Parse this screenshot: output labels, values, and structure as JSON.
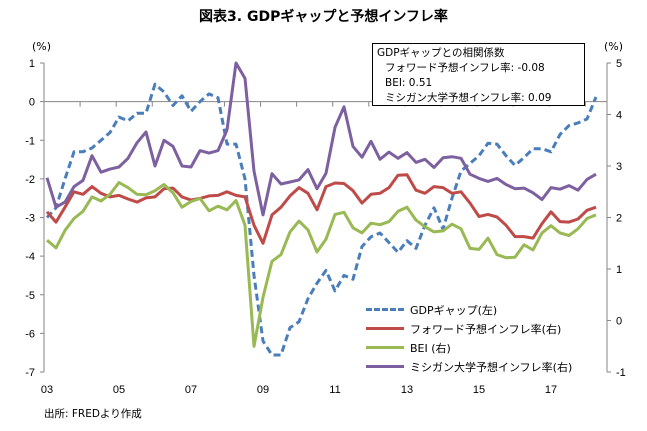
{
  "title": "図表3.  GDPギャップと予想インフレ率",
  "unit_left": "(%)",
  "unit_right": "(%)",
  "correlation": {
    "heading": "GDPギャップとの相関係数",
    "rows": [
      "フォワード予想インフレ率: -0.08",
      "BEI: 0.51",
      "ミシガン大学予想インフレ率: 0.09"
    ]
  },
  "source": "出所:  FREDより作成",
  "chart_data": {
    "type": "line",
    "title": "図表3.  GDPギャップと予想インフレ率",
    "x_start": "2003Q1",
    "frequency": "quarterly",
    "x_tick_labels": [
      "03",
      "05",
      "07",
      "09",
      "11",
      "13",
      "15",
      "17"
    ],
    "y_left": {
      "label": "(%)",
      "range": [
        -7,
        1
      ],
      "ticks": [
        "1",
        "0",
        "-1",
        "-2",
        "-3",
        "-4",
        "-5",
        "-6",
        "-7"
      ]
    },
    "y_right": {
      "label": "(%)",
      "range": [
        -1,
        5
      ],
      "ticks": [
        "5",
        "4",
        "3",
        "2",
        "1",
        "0",
        "-1"
      ]
    },
    "legend_position": "bottom-right",
    "series": [
      {
        "name": "GDPギャップ(左)",
        "axis": "left",
        "color": "#4a7ebb",
        "dash": true,
        "values": [
          -3.0,
          -2.75,
          -2.0,
          -1.3,
          -1.3,
          -1.2,
          -1.0,
          -0.8,
          -0.4,
          -0.5,
          -0.3,
          -0.3,
          0.45,
          0.25,
          -0.1,
          0.15,
          -0.25,
          0.0,
          0.2,
          0.1,
          -1.1,
          -1.1,
          -2.0,
          -4.5,
          -6.2,
          -6.56,
          -6.56,
          -5.85,
          -5.7,
          -5.1,
          -4.7,
          -4.37,
          -4.9,
          -4.5,
          -4.6,
          -3.75,
          -3.5,
          -3.4,
          -3.65,
          -3.9,
          -3.6,
          -3.8,
          -3.2,
          -2.75,
          -3.3,
          -2.5,
          -1.8,
          -1.6,
          -1.4,
          -1.08,
          -1.1,
          -1.4,
          -1.65,
          -1.45,
          -1.22,
          -1.22,
          -1.3,
          -0.85,
          -0.62,
          -0.55,
          -0.45,
          0.12
        ]
      },
      {
        "name": "フォワード予想インフレ率(右)",
        "axis": "right",
        "color": "#be4b48",
        "dash": false,
        "values": [
          2.11,
          1.91,
          2.2,
          2.5,
          2.45,
          2.6,
          2.47,
          2.4,
          2.43,
          2.36,
          2.3,
          2.38,
          2.4,
          2.56,
          2.57,
          2.4,
          2.34,
          2.37,
          2.42,
          2.43,
          2.5,
          2.43,
          2.4,
          1.85,
          1.5,
          2.05,
          2.2,
          2.42,
          2.58,
          2.47,
          2.15,
          2.6,
          2.67,
          2.66,
          2.52,
          2.28,
          2.45,
          2.47,
          2.58,
          2.82,
          2.83,
          2.53,
          2.47,
          2.6,
          2.58,
          2.47,
          2.5,
          2.28,
          2.02,
          2.06,
          2.01,
          1.85,
          1.63,
          1.63,
          1.6,
          1.88,
          2.11,
          1.92,
          1.91,
          1.97,
          2.14,
          2.2
        ]
      },
      {
        "name": "BEI (右)",
        "axis": "right",
        "color": "#98b954",
        "dash": false,
        "values": [
          1.56,
          1.41,
          1.75,
          1.98,
          2.12,
          2.4,
          2.32,
          2.45,
          2.68,
          2.58,
          2.45,
          2.44,
          2.52,
          2.64,
          2.48,
          2.2,
          2.31,
          2.37,
          2.13,
          2.22,
          2.15,
          2.33,
          1.85,
          -0.5,
          0.45,
          1.15,
          1.28,
          1.72,
          1.93,
          1.76,
          1.33,
          1.58,
          2.06,
          2.1,
          1.8,
          1.7,
          1.89,
          1.86,
          1.92,
          2.12,
          2.2,
          1.95,
          1.82,
          1.72,
          1.74,
          1.87,
          1.78,
          1.4,
          1.38,
          1.6,
          1.28,
          1.22,
          1.23,
          1.47,
          1.37,
          1.7,
          1.84,
          1.7,
          1.65,
          1.78,
          1.98,
          2.05
        ]
      },
      {
        "name": "ミシガン大学予想インフレ率(右)",
        "axis": "right",
        "color": "#7d60a0",
        "dash": false,
        "values": [
          2.77,
          2.2,
          2.3,
          2.6,
          2.72,
          3.2,
          2.88,
          2.94,
          2.98,
          3.15,
          3.45,
          3.66,
          3.0,
          3.5,
          3.38,
          3.0,
          2.98,
          3.3,
          3.25,
          3.3,
          3.7,
          5.0,
          4.7,
          2.9,
          2.05,
          2.85,
          2.65,
          2.69,
          2.73,
          2.93,
          2.56,
          2.86,
          3.75,
          4.15,
          3.38,
          3.17,
          3.48,
          3.13,
          3.27,
          3.15,
          3.26,
          3.07,
          3.13,
          2.97,
          3.16,
          3.18,
          3.15,
          2.84,
          2.76,
          2.7,
          2.76,
          2.64,
          2.56,
          2.57,
          2.48,
          2.35,
          2.58,
          2.55,
          2.62,
          2.53,
          2.74,
          2.84
        ]
      }
    ]
  }
}
